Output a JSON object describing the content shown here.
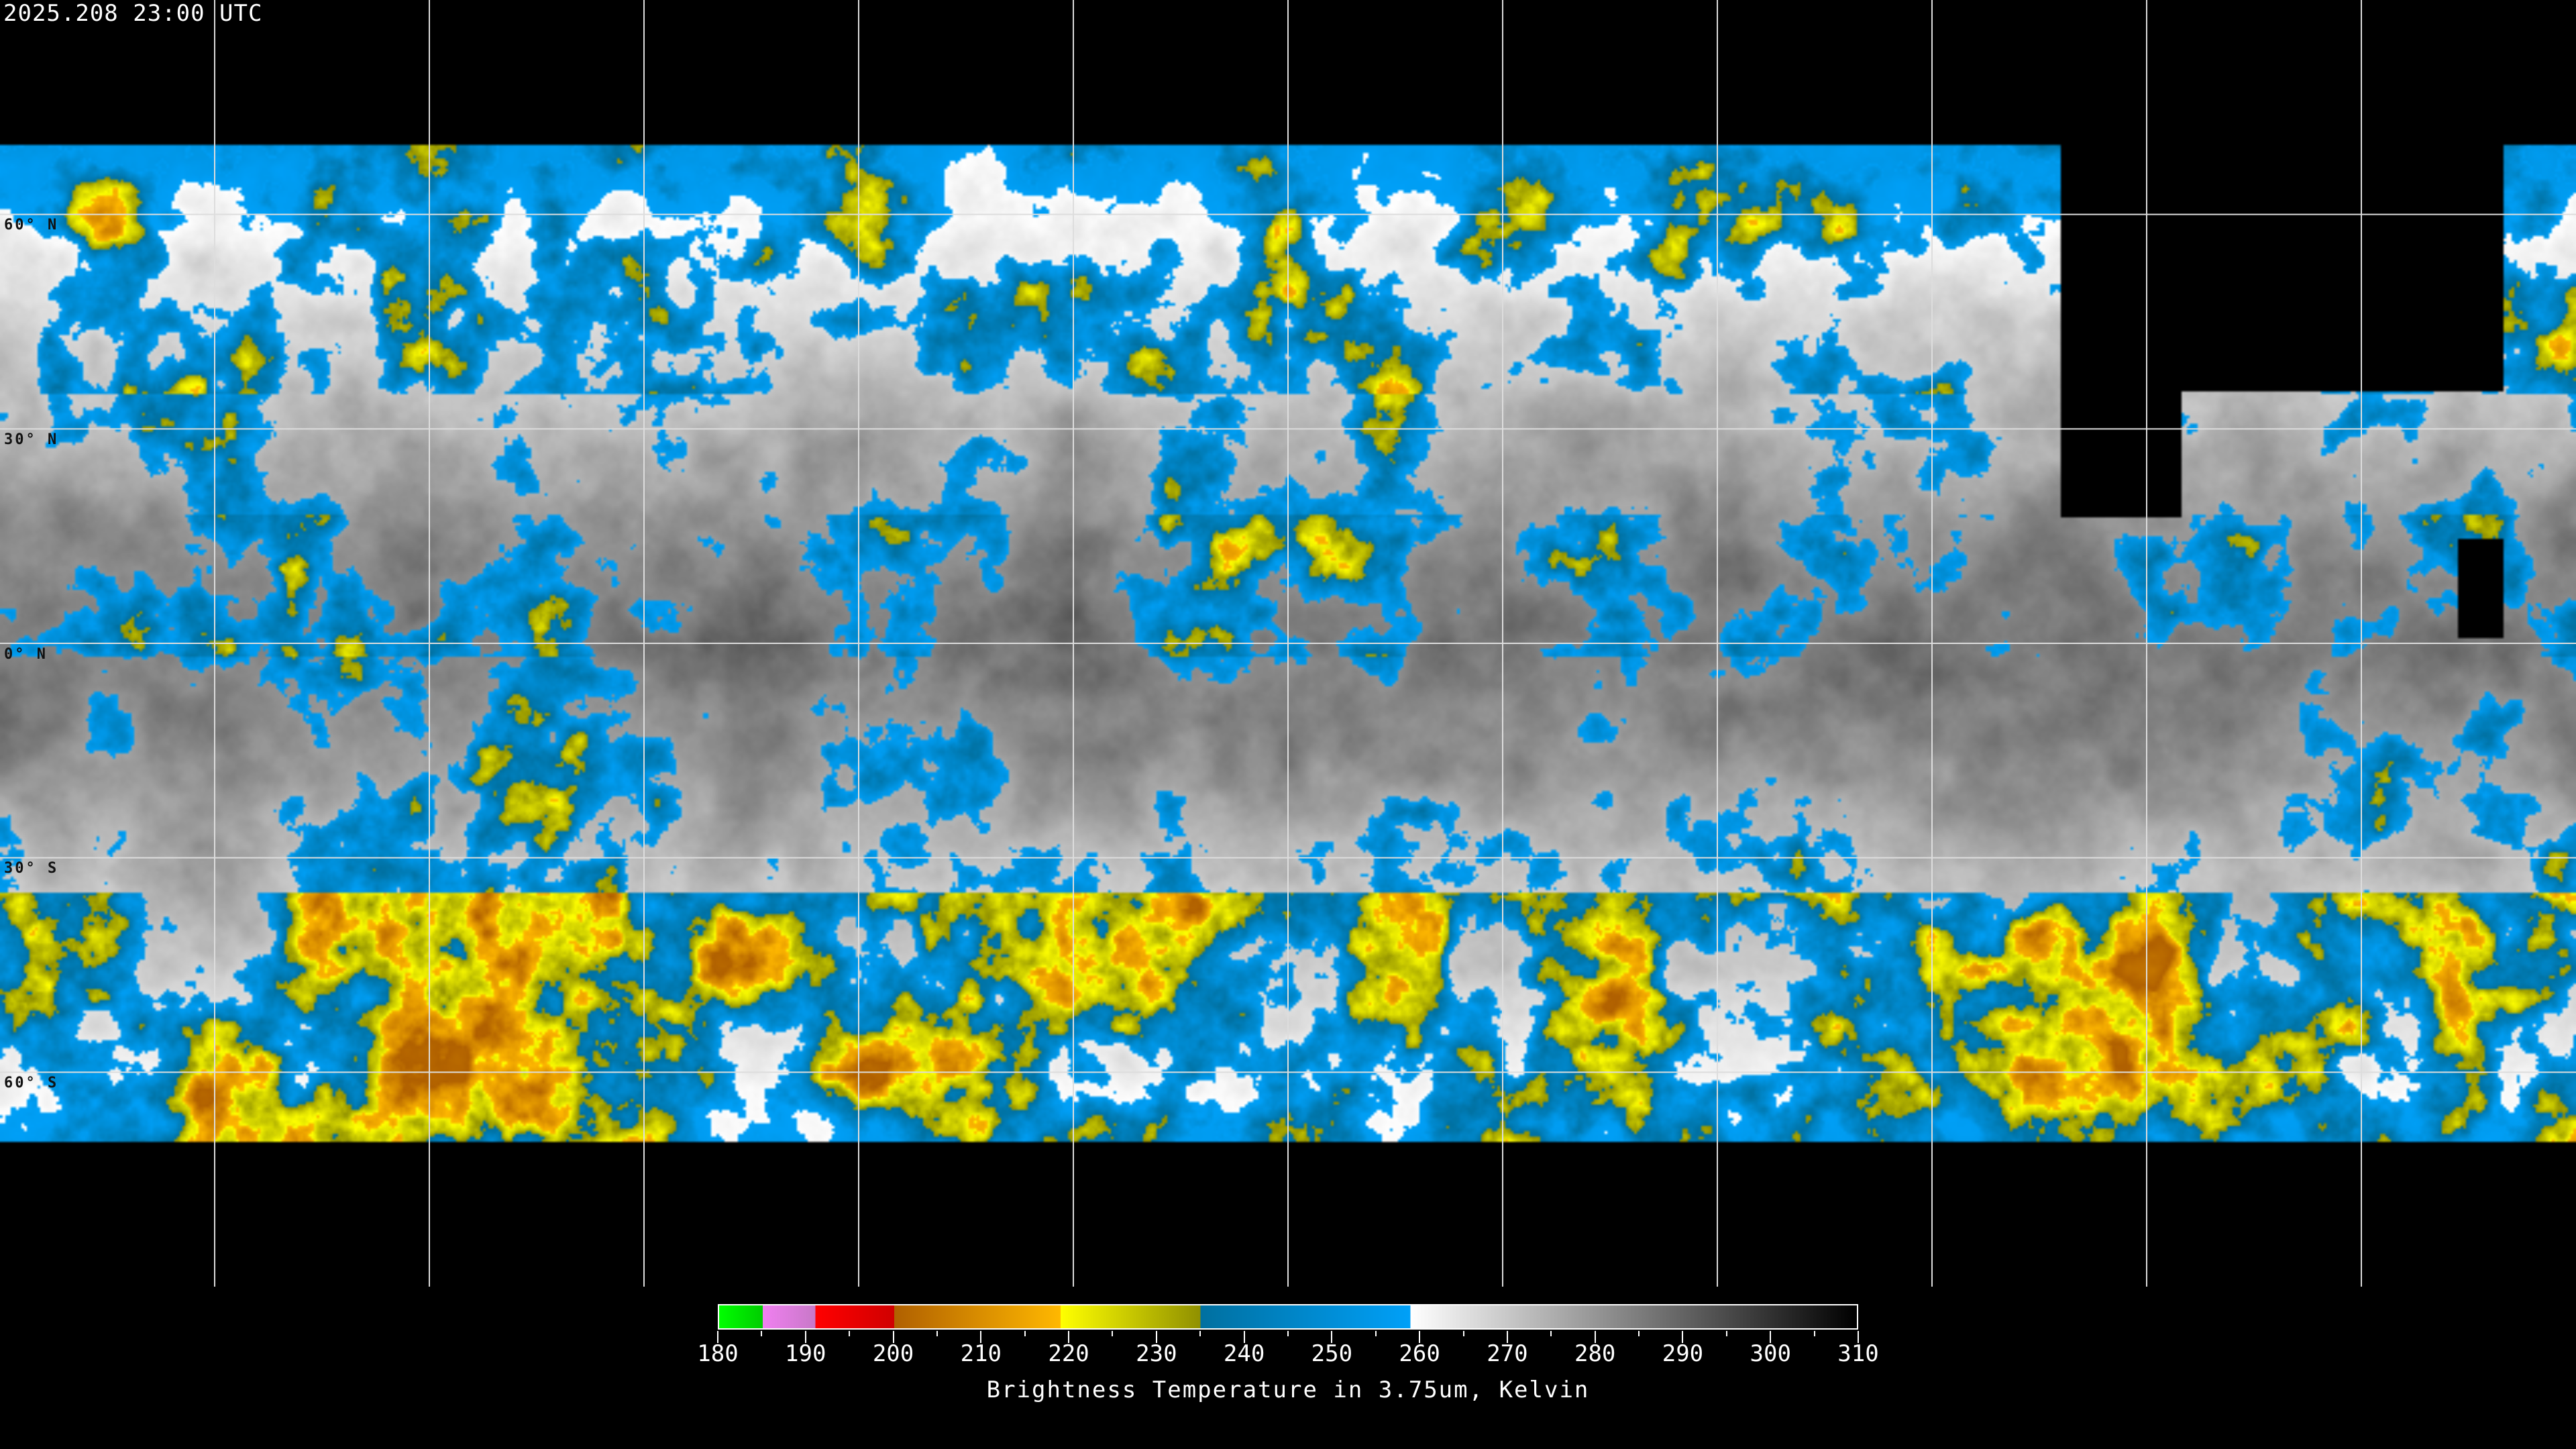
{
  "header": {
    "timestamp": "2025.208 23:00 UTC"
  },
  "map": {
    "projection": "equirectangular",
    "latitude_labels": [
      "60° N",
      "30° N",
      "0° N",
      "30° S",
      "60° S"
    ],
    "latitudes": [
      60,
      30,
      0,
      -30,
      -60
    ],
    "longitude_gridline_spacing_deg": 30,
    "background": "#000000"
  },
  "colorbar": {
    "title": "Brightness Temperature in 3.75um, Kelvin",
    "min": 180,
    "max": 310,
    "tick_labels": [
      "180",
      "190",
      "200",
      "210",
      "220",
      "230",
      "240",
      "250",
      "260",
      "270",
      "280",
      "290",
      "300",
      "310"
    ],
    "segments": [
      {
        "from": 180,
        "to": 185,
        "start": "#00ff00",
        "end": "#00cc00"
      },
      {
        "from": 185,
        "to": 191,
        "start": "#f080f0",
        "end": "#c878c8"
      },
      {
        "from": 191,
        "to": 200,
        "start": "#ff0000",
        "end": "#d00000"
      },
      {
        "from": 200,
        "to": 219,
        "start": "#b06000",
        "end": "#ffb800"
      },
      {
        "from": 219,
        "to": 235,
        "start": "#ffff00",
        "end": "#909000"
      },
      {
        "from": 235,
        "to": 259,
        "start": "#0070a0",
        "end": "#00a0f8"
      },
      {
        "from": 259,
        "to": 310,
        "start": "#ffffff",
        "end": "#000000"
      }
    ]
  }
}
